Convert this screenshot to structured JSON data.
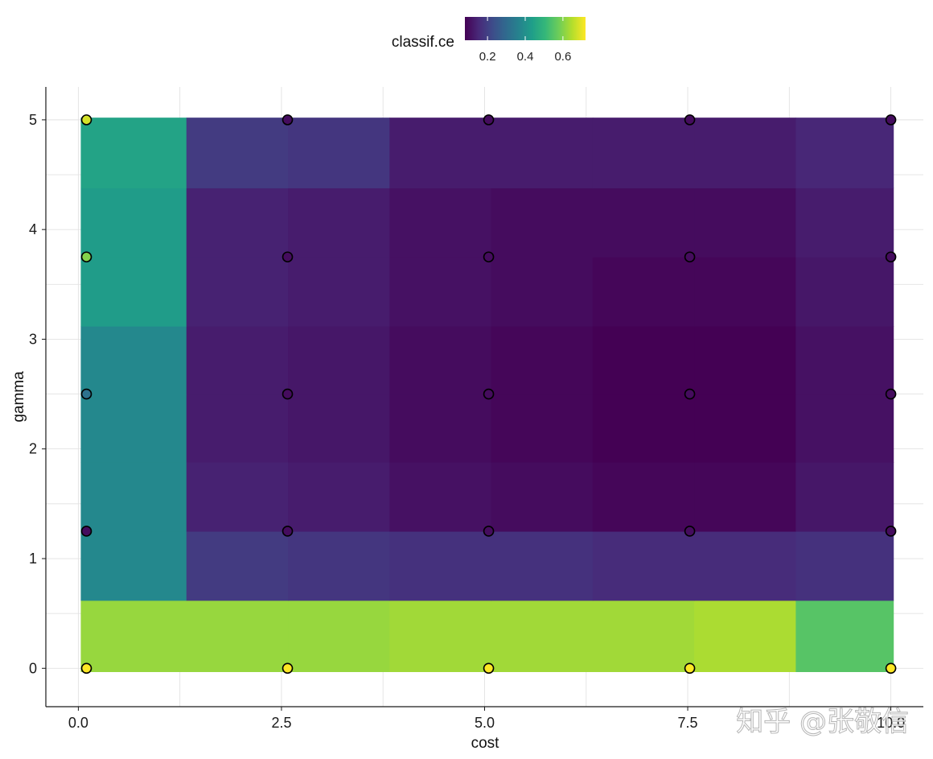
{
  "watermark": "知乎 @张敬信",
  "chart_data": {
    "type": "heatmap",
    "title": "",
    "xlabel": "cost",
    "ylabel": "gamma",
    "xlim": [
      -0.4,
      10.4
    ],
    "ylim": [
      -0.35,
      5.3
    ],
    "x_ticks": [
      "0.0",
      "2.5",
      "5.0",
      "7.5",
      "10.0"
    ],
    "y_ticks": [
      "0",
      "1",
      "2",
      "3",
      "4",
      "5"
    ],
    "x_tick_values": [
      0,
      2.5,
      5,
      7.5,
      10
    ],
    "y_tick_values": [
      0,
      1,
      2,
      3,
      4,
      5
    ],
    "grid": true,
    "legend": {
      "title": "classif.ce",
      "position": "top",
      "ticks": [
        "0.2",
        "0.4",
        "0.6"
      ],
      "tick_values": [
        0.2,
        0.4,
        0.6
      ],
      "range": [
        0.08,
        0.72
      ],
      "palette": [
        "#440154",
        "#482878",
        "#3e4a89",
        "#31688e",
        "#26828e",
        "#1f9e89",
        "#35b779",
        "#6dcd59",
        "#b4de2c",
        "#fde725"
      ]
    },
    "tile_x_edges": [
      0.03,
      1.33,
      2.58,
      3.83,
      5.08,
      6.33,
      7.58,
      8.83,
      10.03
    ],
    "tile_y_edges": [
      -0.03,
      0.62,
      1.25,
      1.88,
      2.5,
      3.12,
      3.75,
      4.38,
      5.02
    ],
    "tile_values": [
      [
        0.62,
        0.62,
        0.62,
        0.63,
        0.63,
        0.63,
        0.64,
        0.55
      ],
      [
        0.38,
        0.19,
        0.18,
        0.17,
        0.17,
        0.16,
        0.16,
        0.17
      ],
      [
        0.38,
        0.14,
        0.13,
        0.11,
        0.1,
        0.09,
        0.09,
        0.12
      ],
      [
        0.38,
        0.13,
        0.12,
        0.1,
        0.09,
        0.08,
        0.08,
        0.11
      ],
      [
        0.38,
        0.13,
        0.12,
        0.1,
        0.09,
        0.08,
        0.08,
        0.11
      ],
      [
        0.43,
        0.14,
        0.13,
        0.11,
        0.1,
        0.09,
        0.09,
        0.12
      ],
      [
        0.43,
        0.14,
        0.13,
        0.11,
        0.1,
        0.1,
        0.1,
        0.13
      ],
      [
        0.45,
        0.19,
        0.18,
        0.13,
        0.13,
        0.13,
        0.13,
        0.15
      ]
    ],
    "points": [
      {
        "x": 0.1,
        "y": 0,
        "value": 0.72
      },
      {
        "x": 2.575,
        "y": 0,
        "value": 0.72
      },
      {
        "x": 5.05,
        "y": 0,
        "value": 0.72
      },
      {
        "x": 7.525,
        "y": 0,
        "value": 0.72
      },
      {
        "x": 10,
        "y": 0,
        "value": 0.72
      },
      {
        "x": 0.1,
        "y": 1.25,
        "value": 0.1
      },
      {
        "x": 2.575,
        "y": 1.25,
        "value": 0.1
      },
      {
        "x": 5.05,
        "y": 1.25,
        "value": 0.1
      },
      {
        "x": 7.525,
        "y": 1.25,
        "value": 0.1
      },
      {
        "x": 10,
        "y": 1.25,
        "value": 0.1
      },
      {
        "x": 0.1,
        "y": 2.5,
        "value": 0.32
      },
      {
        "x": 2.575,
        "y": 2.5,
        "value": 0.1
      },
      {
        "x": 5.05,
        "y": 2.5,
        "value": 0.1
      },
      {
        "x": 7.525,
        "y": 2.5,
        "value": 0.1
      },
      {
        "x": 10,
        "y": 2.5,
        "value": 0.1
      },
      {
        "x": 0.1,
        "y": 3.75,
        "value": 0.6
      },
      {
        "x": 2.575,
        "y": 3.75,
        "value": 0.1
      },
      {
        "x": 5.05,
        "y": 3.75,
        "value": 0.1
      },
      {
        "x": 7.525,
        "y": 3.75,
        "value": 0.1
      },
      {
        "x": 10,
        "y": 3.75,
        "value": 0.1
      },
      {
        "x": 0.1,
        "y": 5,
        "value": 0.68
      },
      {
        "x": 2.575,
        "y": 5,
        "value": 0.1
      },
      {
        "x": 5.05,
        "y": 5,
        "value": 0.1
      },
      {
        "x": 7.525,
        "y": 5,
        "value": 0.1
      },
      {
        "x": 10,
        "y": 5,
        "value": 0.1
      }
    ]
  }
}
